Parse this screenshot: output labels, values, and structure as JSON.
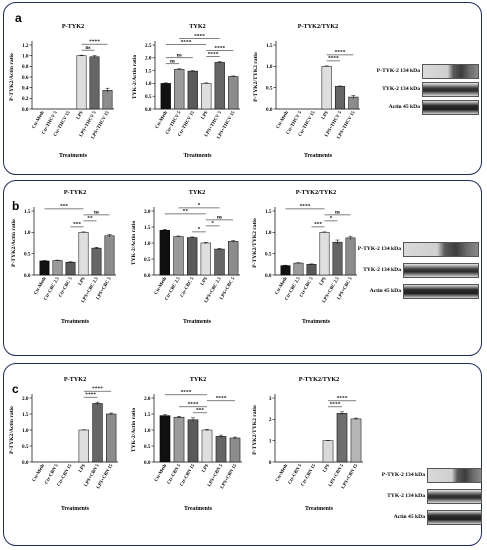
{
  "panels": [
    {
      "label": "a",
      "charts": [
        {
          "type": "bar",
          "title": "P-TYK2",
          "ylabel": "P-TYK2/Actin ratio",
          "xlabel": "Treatments",
          "categories": [
            "Ctr-Meth",
            "Ctr-THCV 5",
            "Ctr-THCV 15",
            "LPS",
            "LPS+THCV 5",
            "LPS+THCV 15"
          ],
          "values": [
            0,
            0,
            0,
            1.0,
            0.98,
            0.35
          ],
          "errors": [
            0,
            0,
            0,
            0.01,
            0.02,
            0.04
          ],
          "ylim": [
            0,
            1.2
          ],
          "yticks": [
            "0.0",
            "0.2",
            "0.4",
            "0.6",
            "0.8",
            "1.0",
            "1.2"
          ],
          "brackets": [
            {
              "from": 3,
              "to": 5,
              "label": "****"
            },
            {
              "from": 3,
              "to": 4,
              "label": "ns"
            }
          ]
        },
        {
          "type": "bar",
          "title": "TYK2",
          "ylabel": "TYK-2/Actin ratio",
          "xlabel": "Treatments",
          "categories": [
            "Ctr-Meth",
            "Ctr-THCV 5",
            "Ctr-THCV 15",
            "LPS",
            "LPS+THCV 5",
            "LPS+THCV 15"
          ],
          "values": [
            1.0,
            1.55,
            1.48,
            1.0,
            1.82,
            1.27
          ],
          "errors": [
            0.02,
            0.02,
            0.02,
            0.02,
            0.03,
            0.02
          ],
          "ylim": [
            0,
            2.5
          ],
          "yticks": [
            "0.0",
            "0.5",
            "1.0",
            "1.5",
            "2.0",
            "2.5"
          ],
          "brackets": [
            {
              "from": 0,
              "to": 3,
              "label": "****"
            },
            {
              "from": 3,
              "to": 5,
              "label": "****"
            },
            {
              "from": 0,
              "to": 1,
              "label": "ns"
            },
            {
              "from": 0,
              "to": 2,
              "label": "ns"
            },
            {
              "from": 3,
              "to": 4,
              "label": "****"
            },
            {
              "from": 1,
              "to": 4,
              "label": "****"
            }
          ]
        },
        {
          "type": "bar",
          "title": "P-TYK2/TYK2",
          "ylabel": "P-TYK2/TYK2 ratio",
          "xlabel": "Treatments",
          "categories": [
            "Ctr-Meth",
            "Ctr-THCV 5",
            "Ctr-THCV 15",
            "LPS",
            "LPS+THCV 5",
            "LPS+THCV 15"
          ],
          "values": [
            0,
            0,
            0,
            1.0,
            0.53,
            0.28
          ],
          "errors": [
            0,
            0,
            0,
            0.01,
            0.01,
            0.04
          ],
          "ylim": [
            0,
            1.5
          ],
          "yticks": [
            "0.0",
            "0.5",
            "1.0",
            "1.5"
          ],
          "brackets": [
            {
              "from": 3,
              "to": 5,
              "label": "****"
            },
            {
              "from": 3,
              "to": 4,
              "label": "****"
            }
          ]
        }
      ],
      "blot": {
        "rows": [
          "P-TYK-2 134 kDa",
          "TYK-2 134 kDa",
          "Actin 45 kDa"
        ]
      }
    },
    {
      "label": "b",
      "charts": [
        {
          "type": "bar",
          "title": "P-TYK2",
          "ylabel": "P-TYK2/Actin ratio",
          "xlabel": "Treatments",
          "categories": [
            "Ctr-Meth",
            "Ctr-CBC 2.5",
            "Ctr-CBC 5",
            "LPS",
            "LPS+CBC 2.5",
            "LPS+CBC 5"
          ],
          "values": [
            0.33,
            0.34,
            0.3,
            1.0,
            0.63,
            0.92
          ],
          "errors": [
            0.01,
            0.01,
            0.01,
            0.01,
            0.02,
            0.03
          ],
          "ylim": [
            0,
            1.5
          ],
          "yticks": [
            "0.0",
            "0.5",
            "1.0",
            "1.5"
          ],
          "brackets": [
            {
              "from": 0,
              "to": 3,
              "label": "***"
            },
            {
              "from": 2,
              "to": 3,
              "label": "***"
            },
            {
              "from": 3,
              "to": 4,
              "label": "**"
            },
            {
              "from": 3,
              "to": 5,
              "label": "ns"
            }
          ]
        },
        {
          "type": "bar",
          "title": "TYK2",
          "ylabel": "TYK-2/Actin ratio",
          "xlabel": "Treatments",
          "categories": [
            "Ctr-Meth",
            "Ctr-CBC 2.5",
            "Ctr-CBC 5",
            "LPS",
            "LPS+CBC 2.5",
            "LPS+CBC 5"
          ],
          "values": [
            1.4,
            1.2,
            1.17,
            1.0,
            0.81,
            1.05
          ],
          "errors": [
            0.03,
            0.02,
            0.02,
            0.02,
            0.02,
            0.03
          ],
          "ylim": [
            0,
            2.0
          ],
          "yticks": [
            "0.0",
            "0.5",
            "1.0",
            "1.5",
            "2.0"
          ],
          "brackets": [
            {
              "from": 0,
              "to": 3,
              "label": "**"
            },
            {
              "from": 1,
              "to": 4,
              "label": "*"
            },
            {
              "from": 2,
              "to": 3,
              "label": "*"
            },
            {
              "from": 3,
              "to": 4,
              "label": "*"
            },
            {
              "from": 3,
              "to": 5,
              "label": "ns"
            }
          ]
        },
        {
          "type": "bar",
          "title": "P-TYK2/TYK2",
          "ylabel": "P-TYK2/TYK2 ratio",
          "xlabel": "Treatments",
          "categories": [
            "Ctr-Meth",
            "Ctr-CBC 2.5",
            "Ctr-CBC 5",
            "LPS",
            "LPS+CBC 2.5",
            "LPS+CBC 5"
          ],
          "values": [
            0.22,
            0.28,
            0.25,
            1.0,
            0.77,
            0.87
          ],
          "errors": [
            0.01,
            0.01,
            0.01,
            0.01,
            0.05,
            0.04
          ],
          "ylim": [
            0,
            1.5
          ],
          "yticks": [
            "0.0",
            "0.5",
            "1.0",
            "1.5"
          ],
          "brackets": [
            {
              "from": 0,
              "to": 3,
              "label": "****"
            },
            {
              "from": 2,
              "to": 3,
              "label": "***"
            },
            {
              "from": 3,
              "to": 4,
              "label": "*"
            },
            {
              "from": 3,
              "to": 5,
              "label": "ns"
            }
          ]
        }
      ],
      "blot": {
        "rows": [
          "P-TYK-2 134 kDa",
          "TYK-2 134 kDa",
          "Actin 45 kDa"
        ]
      }
    },
    {
      "label": "c",
      "charts": [
        {
          "type": "bar",
          "title": "P-TYK2",
          "ylabel": "P-TYK2/Actin ratio",
          "xlabel": "Treatments",
          "categories": [
            "Ctr-Meth",
            "Ctr-CBN 5",
            "Ctr-CBN 15",
            "LPS",
            "LPS+CBN 5",
            "LPS+CBN 15"
          ],
          "values": [
            0,
            0,
            0,
            1.0,
            1.83,
            1.5
          ],
          "errors": [
            0,
            0,
            0,
            0.01,
            0.04,
            0.03
          ],
          "ylim": [
            0,
            2.0
          ],
          "yticks": [
            "0.0",
            "0.5",
            "1.0",
            "1.5",
            "2.0"
          ],
          "brackets": [
            {
              "from": 3,
              "to": 5,
              "label": "****"
            },
            {
              "from": 3,
              "to": 4,
              "label": "****"
            }
          ]
        },
        {
          "type": "bar",
          "title": "TYK2",
          "ylabel": "TYK-2/Actin ratio",
          "xlabel": "Treatments",
          "categories": [
            "Ctr-Meth",
            "Ctr-CBN 5",
            "Ctr-CBN 15",
            "LPS",
            "LPS+CBN 5",
            "LPS+CBN 15"
          ],
          "values": [
            1.45,
            1.4,
            1.32,
            1.0,
            0.8,
            0.75
          ],
          "errors": [
            0.03,
            0.03,
            0.06,
            0.02,
            0.04,
            0.03
          ],
          "ylim": [
            0,
            2.0
          ],
          "yticks": [
            "0.0",
            "0.5",
            "1.0",
            "1.5",
            "2.0"
          ],
          "brackets": [
            {
              "from": 0,
              "to": 3,
              "label": "****"
            },
            {
              "from": 1,
              "to": 3,
              "label": "****"
            },
            {
              "from": 3,
              "to": 5,
              "label": "****"
            },
            {
              "from": 2,
              "to": 3,
              "label": "***"
            }
          ]
        },
        {
          "type": "bar",
          "title": "P-TYK2/TYK2",
          "ylabel": "P-TYK2/TYK2 ratio",
          "xlabel": "Treatments",
          "categories": [
            "Ctr-Meth",
            "Ctr-CBN 5",
            "Ctr-CBN 15",
            "LPS",
            "LPS+CBN 5",
            "LPS+CBN 15"
          ],
          "values": [
            0,
            0,
            0,
            1.0,
            2.28,
            2.02
          ],
          "errors": [
            0,
            0,
            0,
            0.01,
            0.07,
            0.04
          ],
          "ylim": [
            0,
            3.0
          ],
          "yticks": [
            "0",
            "1",
            "2",
            "3"
          ],
          "brackets": [
            {
              "from": 3,
              "to": 5,
              "label": "****"
            },
            {
              "from": 3,
              "to": 4,
              "label": "****"
            }
          ]
        }
      ],
      "blot": {
        "rows": [
          "P-TYK-2 134 kDa",
          "TYK-2 134 kDa",
          "Actin 45 kDa"
        ]
      }
    }
  ],
  "colors": {
    "bars": [
      "#111111",
      "#9b9b9b",
      "#5a5a5a",
      "#dedede",
      "#666666",
      "#8c8c8c"
    ],
    "bars_ratio_c": [
      "#111111",
      "#9b9b9b",
      "#5a5a5a",
      "#d9d9d9",
      "#6e6e6e",
      "#b5b5b5"
    ],
    "border": "#1f2d57"
  }
}
